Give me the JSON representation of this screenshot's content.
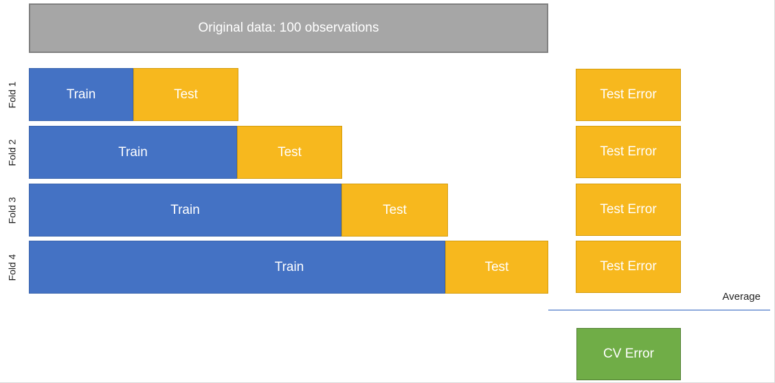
{
  "header": {
    "label": "Original data: 100 observations"
  },
  "folds": [
    {
      "name": "Fold 1",
      "train_label": "Train",
      "test_label": "Test"
    },
    {
      "name": "Fold 2",
      "train_label": "Train",
      "test_label": "Test"
    },
    {
      "name": "Fold 3",
      "train_label": "Train",
      "test_label": "Test"
    },
    {
      "name": "Fold 4",
      "train_label": "Train",
      "test_label": "Test"
    }
  ],
  "error_panel": {
    "boxes": [
      {
        "label": "Test Error"
      },
      {
        "label": "Test Error"
      },
      {
        "label": "Test Error"
      },
      {
        "label": "Test Error"
      }
    ],
    "average_label": "Average",
    "cv_error_label": "CV Error"
  },
  "diagram": {
    "type": "forward-chaining-cross-validation",
    "total_observations": 100,
    "units_total": 5,
    "train_units_per_fold": [
      1,
      2,
      3,
      4
    ],
    "test_units_per_fold": [
      1,
      1,
      1,
      1
    ]
  },
  "colors": {
    "original_data_fill": "#a6a6a6",
    "original_data_border": "#7f7f7f",
    "train_fill": "#4472c4",
    "test_fill": "#f7b81e",
    "test_border": "#d49c0b",
    "cv_error_fill": "#70ad47",
    "cv_error_border": "#507e32",
    "average_line": "#8eaadc",
    "bar_text": "#ffffff",
    "label_text": "#1f1f1f"
  }
}
